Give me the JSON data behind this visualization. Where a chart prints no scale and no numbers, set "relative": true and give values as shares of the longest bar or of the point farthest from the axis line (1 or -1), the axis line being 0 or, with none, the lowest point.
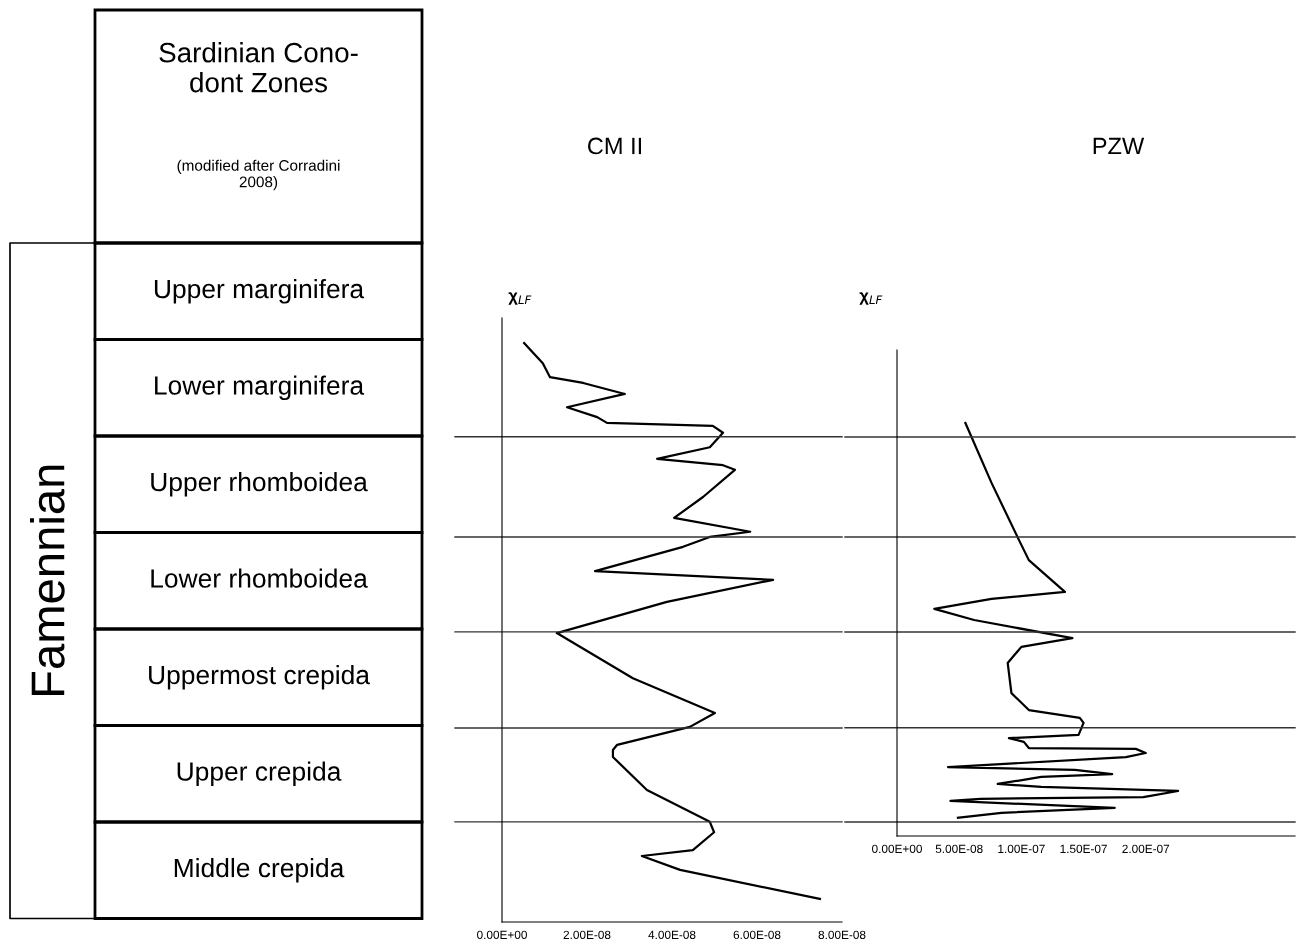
{
  "chart_data": [
    {
      "type": "other",
      "title": "Sardinian Cono-\ndont Zones",
      "subtitle": "(modified after Corradini\n2008)",
      "ylabel": "Famennian",
      "categories": [
        "Upper marginifera",
        "Lower marginifera",
        "Upper rhomboidea",
        "Lower rhomboidea",
        "Uppermost crepida",
        "Upper crepida",
        "Middle crepida"
      ]
    },
    {
      "type": "line",
      "title": "CM II",
      "subtitle": "χ$_{LF}$",
      "relative": true,
      "grid": false,
      "legend": false,
      "marker": "none",
      "line_style": "solid",
      "xlim": [
        0,
        8e-08
      ],
      "xticks": [
        {
          "value": 0,
          "label": "0.00E+00"
        },
        {
          "value": 2e-08,
          "label": "2.00E-08"
        },
        {
          "value": 4e-08,
          "label": "4.00E-08"
        },
        {
          "value": 6e-08,
          "label": "6.00E-08"
        },
        {
          "value": 8e-08,
          "label": "8.00E-08"
        }
      ],
      "ref_lines": [
        {
          "axis": "y",
          "value": 0.838
        },
        {
          "axis": "y",
          "value": 0.665
        },
        {
          "axis": "y",
          "value": 0.501
        },
        {
          "axis": "y",
          "value": 0.335
        },
        {
          "axis": "y",
          "value": 0.173
        }
      ],
      "series": [
        {
          "color": "#000000",
          "x": [
            5.2e-09,
            9.6e-09,
            1.13e-08,
            1.91e-08,
            2.89e-08,
            1.53e-08,
            2.24e-08,
            2.47e-08,
            4.96e-08,
            5.2e-08,
            4.89e-08,
            3.65e-08,
            5.2e-08,
            5.48e-08,
            4.73e-08,
            4.05e-08,
            5.84e-08,
            4.89e-08,
            4.26e-08,
            2.19e-08,
            6.38e-08,
            3.88e-08,
            1.29e-08,
            3.08e-08,
            5.01e-08,
            4.42e-08,
            2.71e-08,
            2.61e-08,
            2.61e-08,
            3.41e-08,
            4.89e-08,
            4.99e-08,
            4.49e-08,
            3.29e-08,
            4.19e-08,
            7.48e-08
          ],
          "values": [
            1.0,
            0.965,
            0.941,
            0.931,
            0.912,
            0.889,
            0.872,
            0.862,
            0.857,
            0.845,
            0.82,
            0.8,
            0.789,
            0.781,
            0.734,
            0.698,
            0.674,
            0.665,
            0.648,
            0.606,
            0.591,
            0.553,
            0.499,
            0.421,
            0.361,
            0.337,
            0.306,
            0.297,
            0.285,
            0.228,
            0.173,
            0.155,
            0.124,
            0.114,
            0.09,
            0.04
          ]
        }
      ]
    },
    {
      "type": "line",
      "title": "PZW",
      "subtitle": "χ$_{LF}$",
      "relative": true,
      "grid": false,
      "legend": false,
      "marker": "none",
      "line_style": "solid",
      "xlim": [
        0,
        3.2e-07
      ],
      "xticks": [
        {
          "value": 0,
          "label": "0.00E+00"
        },
        {
          "value": 5e-08,
          "label": "5.00E-08"
        },
        {
          "value": 1e-07,
          "label": "1.00E-07"
        },
        {
          "value": 1.5e-07,
          "label": "1.50E-07"
        },
        {
          "value": 2e-07,
          "label": "2.00E-07"
        }
      ],
      "ref_lines": [
        {
          "axis": "y",
          "value": 0.966
        },
        {
          "axis": "y",
          "value": 0.724
        },
        {
          "axis": "y",
          "value": 0.494
        },
        {
          "axis": "y",
          "value": 0.262
        },
        {
          "axis": "y",
          "value": 0.034
        }
      ],
      "series": [
        {
          "color": "#000000",
          "x": [
            5.5e-08,
            7.6e-08,
            9.8e-08,
            1.06e-07,
            1.35e-07,
            7.6e-08,
            3e-08,
            6.2e-08,
            1.41e-07,
            1e-07,
            8.9e-08,
            9.2e-08,
            1.06e-07,
            1.47e-07,
            1.5e-07,
            1.46e-07,
            9e-08,
            1.02e-07,
            1.06e-07,
            1.92e-07,
            2e-07,
            1.84e-07,
            4.1e-08,
            1.43e-07,
            1.73e-07,
            1.16e-07,
            8.1e-08,
            1.16e-07,
            2.26e-07,
            1.98e-07,
            6.7e-08,
            4.3e-08,
            1.75e-07,
            8.4e-08,
            4.9e-08
          ],
          "values": [
            1.0,
            0.855,
            0.717,
            0.668,
            0.591,
            0.574,
            0.55,
            0.523,
            0.479,
            0.458,
            0.419,
            0.346,
            0.305,
            0.286,
            0.274,
            0.245,
            0.237,
            0.228,
            0.213,
            0.211,
            0.201,
            0.191,
            0.167,
            0.16,
            0.15,
            0.143,
            0.126,
            0.119,
            0.109,
            0.094,
            0.09,
            0.085,
            0.068,
            0.056,
            0.044
          ]
        }
      ]
    }
  ]
}
